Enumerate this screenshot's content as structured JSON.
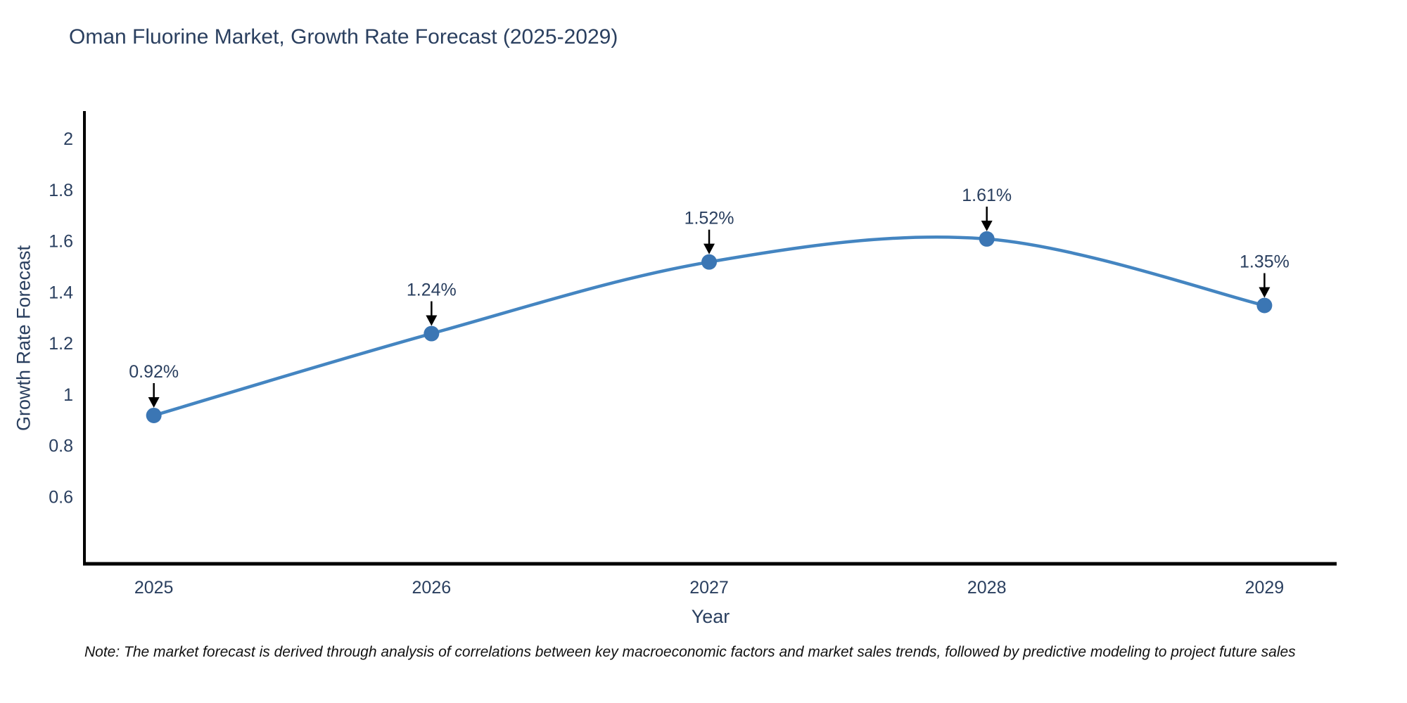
{
  "title": "Oman Fluorine Market, Growth Rate Forecast (2025-2029)",
  "note": "Note: The market forecast is derived through analysis of correlations between key macroeconomic factors and market sales trends, followed by predictive modeling to project future sales",
  "colors": {
    "title_text": "#2a3f5f",
    "tick_text": "#2a3f5f",
    "axis_line": "#000000",
    "series_line": "#4485c1",
    "marker_fill": "#3b76b4",
    "annotation_text": "#2a3f5f",
    "annotation_arrow": "#000000",
    "note_text": "#111111",
    "background": "#ffffff"
  },
  "chart_data": {
    "type": "line",
    "title": "Oman Fluorine Market, Growth Rate Forecast (2025-2029)",
    "xlabel": "Year",
    "ylabel": "Growth Rate Forecast",
    "x": [
      2025,
      2026,
      2027,
      2028,
      2029
    ],
    "series": [
      {
        "name": "Growth Rate Forecast",
        "values": [
          0.92,
          1.24,
          1.52,
          1.61,
          1.35
        ],
        "point_labels": [
          "0.92%",
          "1.24%",
          "1.52%",
          "1.61%",
          "1.35%"
        ]
      }
    ],
    "xtick_labels": [
      "2025",
      "2026",
      "2027",
      "2028",
      "2029"
    ],
    "ytick_values": [
      2,
      1.8,
      1.6,
      1.4,
      1.2,
      1,
      0.8,
      0.6
    ],
    "ytick_labels": [
      "2",
      "1.8",
      "1.6",
      "1.4",
      "1.2",
      "1",
      "0.8",
      "0.6"
    ],
    "xlim": [
      2024.75,
      2029.26
    ],
    "ylim": [
      0.34,
      2.11
    ],
    "grid": false,
    "legend_position": "none",
    "line_shape": "spline",
    "annotations_have_arrows": true
  }
}
